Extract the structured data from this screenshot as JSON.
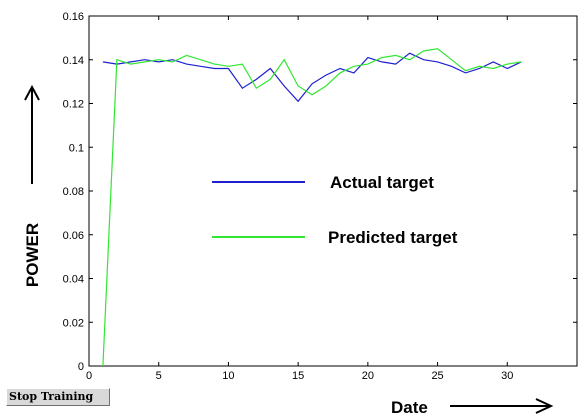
{
  "chart_data": {
    "type": "line",
    "ylabel": "POWER",
    "xlabel": "Date",
    "xlim": [
      0,
      35
    ],
    "ylim": [
      0,
      0.16
    ],
    "xticks": [
      0,
      5,
      10,
      15,
      20,
      25,
      30
    ],
    "xtick_labels": [
      "0",
      "5",
      "10",
      "15",
      "20",
      "25",
      "30"
    ],
    "yticks": [
      0,
      0.02,
      0.04,
      0.06,
      0.08,
      0.1,
      0.12,
      0.14,
      0.16
    ],
    "ytick_labels": [
      "0",
      "0.02",
      "0.04",
      "0.06",
      "0.08",
      "0.1",
      "0.12",
      "0.14",
      "0.16"
    ],
    "grid": false,
    "legend_position": "center",
    "series": [
      {
        "name": "Actual target",
        "color": "#1f1fd0",
        "x": [
          1,
          2,
          3,
          4,
          5,
          6,
          7,
          8,
          9,
          10,
          11,
          12,
          13,
          14,
          15,
          16,
          17,
          18,
          19,
          20,
          21,
          22,
          23,
          24,
          25,
          26,
          27,
          28,
          29,
          30,
          31
        ],
        "y": [
          0.139,
          0.138,
          0.139,
          0.14,
          0.139,
          0.14,
          0.138,
          0.137,
          0.136,
          0.136,
          0.127,
          0.131,
          0.136,
          0.128,
          0.121,
          0.129,
          0.133,
          0.136,
          0.134,
          0.141,
          0.139,
          0.138,
          0.143,
          0.14,
          0.139,
          0.137,
          0.134,
          0.136,
          0.139,
          0.136,
          0.139
        ]
      },
      {
        "name": "Predicted target",
        "color": "#33e633",
        "x": [
          1,
          2,
          3,
          4,
          5,
          6,
          7,
          8,
          9,
          10,
          11,
          12,
          13,
          14,
          15,
          16,
          17,
          18,
          19,
          20,
          21,
          22,
          23,
          24,
          25,
          26,
          27,
          28,
          29,
          30,
          31
        ],
        "y": [
          0,
          0.14,
          0.138,
          0.139,
          0.14,
          0.139,
          0.142,
          0.14,
          0.138,
          0.137,
          0.138,
          0.127,
          0.131,
          0.14,
          0.128,
          0.124,
          0.128,
          0.134,
          0.137,
          0.138,
          0.141,
          0.142,
          0.14,
          0.144,
          0.145,
          0.14,
          0.135,
          0.137,
          0.136,
          0.138,
          0.139
        ]
      }
    ]
  },
  "controls": {
    "stop_training_label": "Stop Training"
  }
}
